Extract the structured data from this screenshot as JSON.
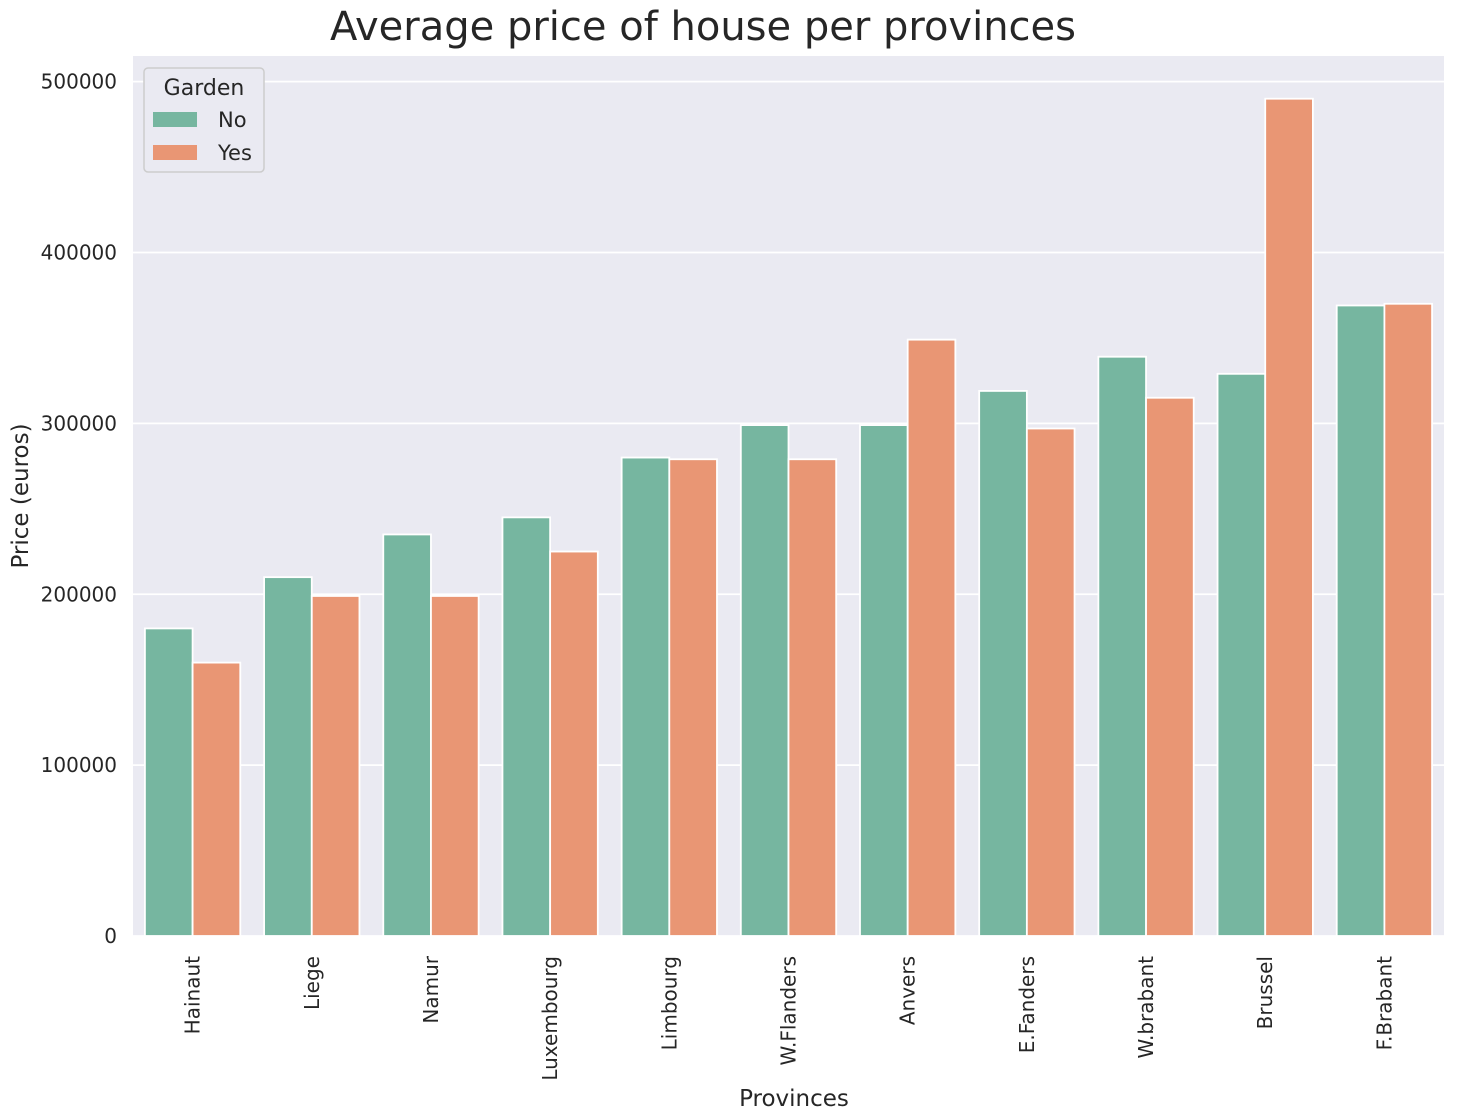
{
  "chart_data": {
    "type": "bar",
    "title": "Average price of house per provinces",
    "xlabel": "Provinces",
    "ylabel": "Price (euros)",
    "ylim": [
      0,
      515000
    ],
    "yticks": [
      0,
      100000,
      200000,
      300000,
      400000,
      500000
    ],
    "grid": true,
    "legend": {
      "title": "Garden",
      "placement": "top-left"
    },
    "categories": [
      "Hainaut",
      "Liege",
      "Namur",
      "Luxembourg",
      "Limbourg",
      "W.Flanders",
      "Anvers",
      "E.Fanders",
      "W.brabant",
      "Brussel",
      "F.Brabant"
    ],
    "series": [
      {
        "name": "No",
        "color": "#76b6a0",
        "values": [
          180000,
          210000,
          235000,
          245000,
          280000,
          299000,
          299000,
          319000,
          339000,
          329000,
          369000
        ]
      },
      {
        "name": "Yes",
        "color": "#e99674",
        "values": [
          160000,
          199000,
          199000,
          225000,
          279000,
          279000,
          349000,
          297000,
          315000,
          490000,
          370000
        ]
      }
    ],
    "background": "#eaeaf2"
  }
}
